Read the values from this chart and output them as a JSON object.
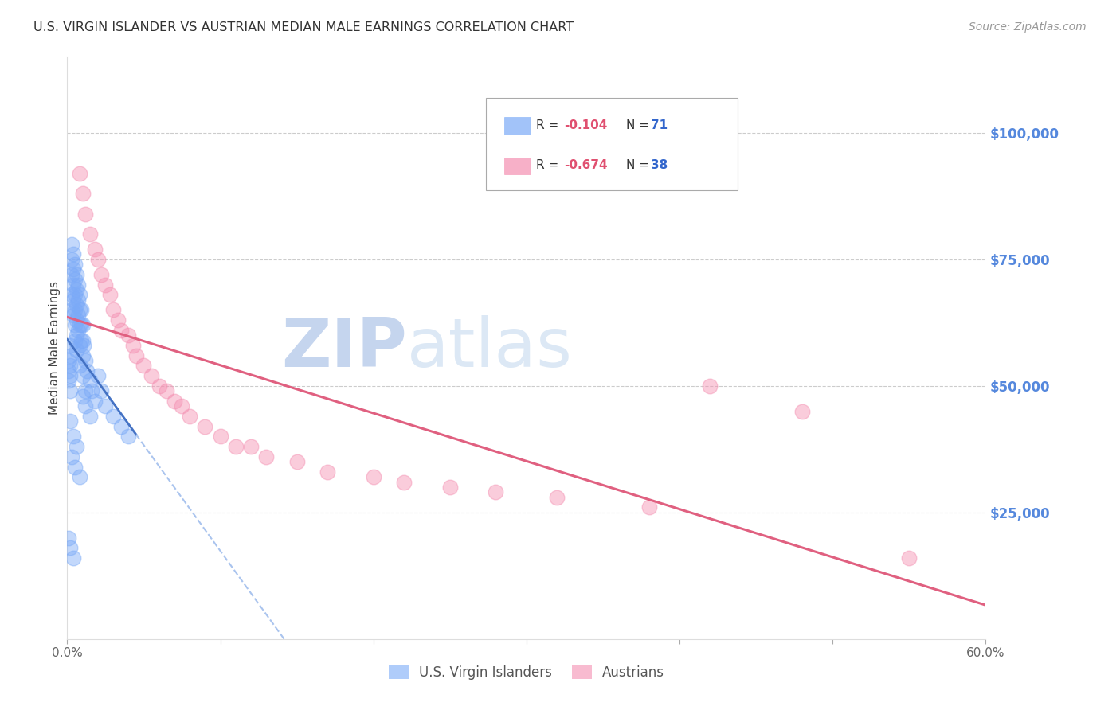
{
  "title": "U.S. VIRGIN ISLANDER VS AUSTRIAN MEDIAN MALE EARNINGS CORRELATION CHART",
  "source": "Source: ZipAtlas.com",
  "ylabel": "Median Male Earnings",
  "ytick_labels": [
    "$25,000",
    "$50,000",
    "$75,000",
    "$100,000"
  ],
  "ytick_values": [
    25000,
    50000,
    75000,
    100000
  ],
  "ymin": 0,
  "ymax": 115000,
  "xmin": 0.0,
  "xmax": 0.6,
  "label1": "U.S. Virgin Islanders",
  "label2": "Austrians",
  "color1": "#7baaf7",
  "color2": "#f48fb1",
  "color1_line": "#4472c4",
  "color2_line": "#e06080",
  "color1_line_dashed": "#aac4ee",
  "watermark": "ZIPatlas",
  "watermark_color": "#d0dff5",
  "background_color": "#ffffff",
  "grid_color": "#cccccc",
  "vi_x": [
    0.001,
    0.001,
    0.001,
    0.002,
    0.002,
    0.002,
    0.002,
    0.002,
    0.003,
    0.003,
    0.003,
    0.003,
    0.003,
    0.004,
    0.004,
    0.004,
    0.004,
    0.004,
    0.005,
    0.005,
    0.005,
    0.005,
    0.005,
    0.005,
    0.006,
    0.006,
    0.006,
    0.006,
    0.006,
    0.007,
    0.007,
    0.007,
    0.007,
    0.008,
    0.008,
    0.008,
    0.008,
    0.009,
    0.009,
    0.009,
    0.01,
    0.01,
    0.01,
    0.011,
    0.012,
    0.013,
    0.015,
    0.016,
    0.018,
    0.02,
    0.022,
    0.025,
    0.03,
    0.035,
    0.04,
    0.003,
    0.005,
    0.008,
    0.002,
    0.004,
    0.006,
    0.001,
    0.002,
    0.004,
    0.01,
    0.012,
    0.015,
    0.006,
    0.008,
    0.01,
    0.012
  ],
  "vi_y": [
    55000,
    53000,
    51000,
    58000,
    56000,
    54000,
    52000,
    49000,
    78000,
    75000,
    72000,
    68000,
    65000,
    76000,
    73000,
    70000,
    67000,
    64000,
    74000,
    71000,
    68000,
    65000,
    62000,
    59000,
    72000,
    69000,
    66000,
    63000,
    60000,
    70000,
    67000,
    64000,
    61000,
    68000,
    65000,
    62000,
    58000,
    65000,
    62000,
    59000,
    62000,
    59000,
    56000,
    58000,
    55000,
    53000,
    51000,
    49000,
    47000,
    52000,
    49000,
    46000,
    44000,
    42000,
    40000,
    36000,
    34000,
    32000,
    43000,
    40000,
    38000,
    20000,
    18000,
    16000,
    48000,
    46000,
    44000,
    57000,
    54000,
    52000,
    49000
  ],
  "at_x": [
    0.008,
    0.01,
    0.012,
    0.015,
    0.018,
    0.02,
    0.022,
    0.025,
    0.028,
    0.03,
    0.033,
    0.035,
    0.04,
    0.043,
    0.045,
    0.05,
    0.055,
    0.06,
    0.065,
    0.07,
    0.075,
    0.08,
    0.09,
    0.1,
    0.11,
    0.12,
    0.13,
    0.15,
    0.17,
    0.2,
    0.22,
    0.25,
    0.28,
    0.32,
    0.38,
    0.42,
    0.48,
    0.55
  ],
  "at_y": [
    92000,
    88000,
    84000,
    80000,
    77000,
    75000,
    72000,
    70000,
    68000,
    65000,
    63000,
    61000,
    60000,
    58000,
    56000,
    54000,
    52000,
    50000,
    49000,
    47000,
    46000,
    44000,
    42000,
    40000,
    38000,
    38000,
    36000,
    35000,
    33000,
    32000,
    31000,
    30000,
    29000,
    28000,
    26000,
    50000,
    45000,
    16000
  ]
}
